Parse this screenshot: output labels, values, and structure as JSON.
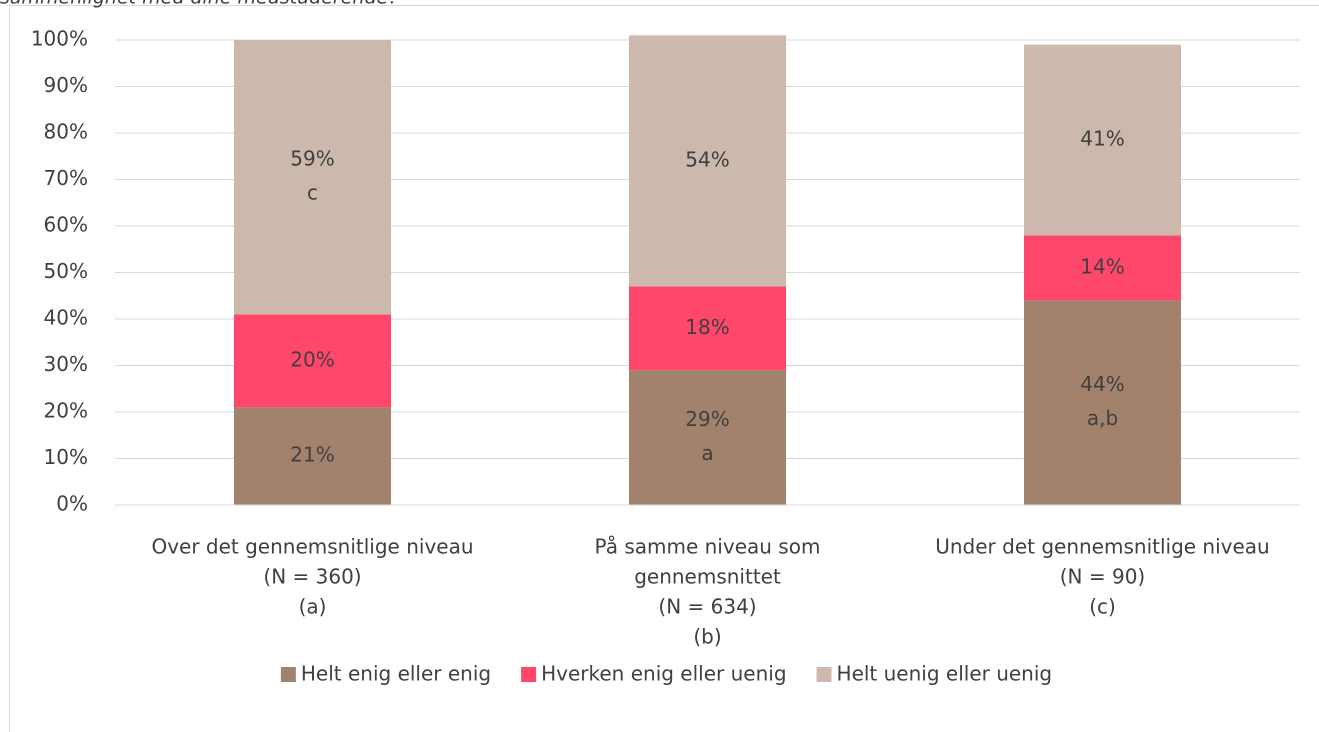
{
  "chart_data": {
    "type": "stacked_bar",
    "subtitle": "sammenlignet med dine medstuderende?",
    "categories": [
      [
        "Over det gennemsnitlige niveau",
        "(N = 360)",
        "(a)"
      ],
      [
        "På samme niveau som",
        "gennemsnittet",
        "(N = 634)",
        "(b)"
      ],
      [
        "Under det gennemsnitlige niveau",
        "(N = 90)",
        "(c)"
      ]
    ],
    "series": [
      {
        "name": "Helt enig eller enig",
        "color": "#a2826d",
        "values": [
          21,
          29,
          44
        ],
        "value_labels": [
          "21%",
          "29%",
          "44%"
        ],
        "annotations": [
          null,
          "a",
          "a,b"
        ]
      },
      {
        "name": "Hverken enig eller uenig",
        "color": "#ff476c",
        "values": [
          20,
          18,
          14
        ],
        "value_labels": [
          "20%",
          "18%",
          "14%"
        ],
        "annotations": [
          null,
          null,
          null
        ]
      },
      {
        "name": "Helt uenig eller uenig",
        "color": "#cdb8ad",
        "values": [
          59,
          54,
          41
        ],
        "value_labels": [
          "59%",
          "54%",
          "41%"
        ],
        "annotations": [
          "c",
          null,
          null
        ]
      }
    ],
    "ylim": [
      0,
      100
    ],
    "yticks": [
      {
        "value": 0,
        "label": "0%"
      },
      {
        "value": 10,
        "label": "10%"
      },
      {
        "value": 20,
        "label": "20%"
      },
      {
        "value": 30,
        "label": "30%"
      },
      {
        "value": 40,
        "label": "40%"
      },
      {
        "value": 50,
        "label": "50%"
      },
      {
        "value": 60,
        "label": "60%"
      },
      {
        "value": 70,
        "label": "70%"
      },
      {
        "value": 80,
        "label": "80%"
      },
      {
        "value": 90,
        "label": "90%"
      },
      {
        "value": 100,
        "label": "100%"
      }
    ],
    "grid": true,
    "legend": "bottom"
  }
}
